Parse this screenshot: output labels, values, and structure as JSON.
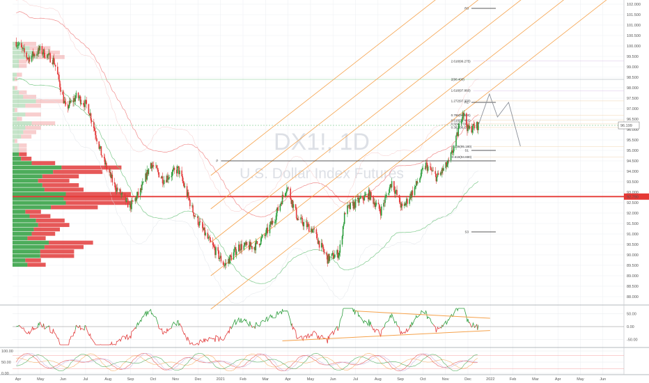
{
  "watermark": {
    "symbol": "DX1!, 1D",
    "name": "U.S. Dollar Index Futures"
  },
  "price_axis": {
    "ticks": [
      "102.000",
      "101.500",
      "101.000",
      "100.500",
      "100.000",
      "99.500",
      "99.000",
      "98.500",
      "98.000",
      "97.500",
      "97.000",
      "96.500",
      "96.000",
      "95.500",
      "95.000",
      "94.500",
      "94.000",
      "93.500",
      "93.000",
      "92.500",
      "92.000",
      "91.500",
      "91.000",
      "90.500",
      "90.000",
      "89.500",
      "89.000",
      "88.500",
      "88.000"
    ],
    "last_price_label": "96.199",
    "ref_price_label": "92.790"
  },
  "time_axis": {
    "labels": [
      "Apr",
      "May",
      "Jun",
      "Jul",
      "Aug",
      "Sep",
      "Oct",
      "Nov",
      "Dec",
      "2021",
      "Feb",
      "Mar",
      "Apr",
      "May",
      "Jun",
      "Jul",
      "Aug",
      "Sep",
      "Oct",
      "Nov",
      "Dec",
      "2022",
      "Feb",
      "Mar",
      "Apr",
      "May",
      "Jun"
    ]
  },
  "pivot_labels": {
    "R3": "R3",
    "R1": "R1",
    "P": "P",
    "S1": "S1",
    "S3": "S3"
  },
  "fib_levels": [
    "3.618(102.500)",
    "2.618(99.275)",
    "2(98.400)",
    "1.618(97.860)",
    "1.272(97.370)",
    "0.786(96.680)",
    "0.618(96.440)",
    "0.5(96.270)",
    "0.382(96.100)",
    "-0.236(95.180)",
    "-0.618(94.690)"
  ],
  "osc1_axis": [
    "50.00",
    "0.00",
    "-50.00"
  ],
  "osc2_axis": [
    "100.00",
    "50.00",
    "0.00"
  ],
  "colors": {
    "up": "#2e9e3e",
    "down": "#e23b3b",
    "fork": "#f5a14a",
    "pivot": "#222222",
    "grid": "#eef0f3",
    "ref": "#e53935",
    "last": "#8fd19e"
  },
  "chart_data": {
    "type": "candlestick",
    "title": "DX1!, 1D",
    "subtitle": "U.S. Dollar Index Futures",
    "x_range": [
      "2020-03-25",
      "2022-06-30"
    ],
    "ylim": [
      87.6,
      102.2
    ],
    "last_price": 96.199,
    "reference_level": 92.79,
    "pivots": {
      "R3": 101.8,
      "R1": 97.3,
      "P": 94.5,
      "S1": 95.0,
      "S3": 91.1
    },
    "close_path": [
      {
        "date": "2020-03-30",
        "close": 100.2
      },
      {
        "date": "2020-04-15",
        "close": 99.4
      },
      {
        "date": "2020-05-01",
        "close": 99.8
      },
      {
        "date": "2020-05-20",
        "close": 99.3
      },
      {
        "date": "2020-06-05",
        "close": 97.0
      },
      {
        "date": "2020-06-20",
        "close": 97.6
      },
      {
        "date": "2020-07-05",
        "close": 97.1
      },
      {
        "date": "2020-07-25",
        "close": 94.6
      },
      {
        "date": "2020-08-10",
        "close": 93.3
      },
      {
        "date": "2020-08-31",
        "close": 92.3
      },
      {
        "date": "2020-09-15",
        "close": 93.1
      },
      {
        "date": "2020-09-28",
        "close": 94.4
      },
      {
        "date": "2020-10-15",
        "close": 93.6
      },
      {
        "date": "2020-11-04",
        "close": 94.1
      },
      {
        "date": "2020-11-25",
        "close": 92.0
      },
      {
        "date": "2020-12-15",
        "close": 90.7
      },
      {
        "date": "2021-01-06",
        "close": 89.5
      },
      {
        "date": "2021-01-25",
        "close": 90.4
      },
      {
        "date": "2021-02-15",
        "close": 90.4
      },
      {
        "date": "2021-03-01",
        "close": 90.9
      },
      {
        "date": "2021-03-15",
        "close": 91.8
      },
      {
        "date": "2021-03-31",
        "close": 93.3
      },
      {
        "date": "2021-04-15",
        "close": 91.7
      },
      {
        "date": "2021-05-05",
        "close": 91.2
      },
      {
        "date": "2021-05-25",
        "close": 89.8
      },
      {
        "date": "2021-06-10",
        "close": 90.1
      },
      {
        "date": "2021-06-18",
        "close": 92.1
      },
      {
        "date": "2021-07-07",
        "close": 92.6
      },
      {
        "date": "2021-07-20",
        "close": 92.9
      },
      {
        "date": "2021-08-05",
        "close": 92.1
      },
      {
        "date": "2021-08-20",
        "close": 93.5
      },
      {
        "date": "2021-09-03",
        "close": 92.2
      },
      {
        "date": "2021-09-20",
        "close": 93.2
      },
      {
        "date": "2021-10-05",
        "close": 94.3
      },
      {
        "date": "2021-10-20",
        "close": 93.7
      },
      {
        "date": "2021-11-05",
        "close": 94.4
      },
      {
        "date": "2021-11-15",
        "close": 95.5
      },
      {
        "date": "2021-11-24",
        "close": 96.9
      },
      {
        "date": "2021-12-01",
        "close": 96.0
      },
      {
        "date": "2021-12-15",
        "close": 96.2
      }
    ],
    "projection": [
      {
        "date": "2021-12-15",
        "close": 96.2
      },
      {
        "date": "2021-12-30",
        "close": 97.7
      },
      {
        "date": "2022-01-10",
        "close": 96.6
      },
      {
        "date": "2022-01-25",
        "close": 97.3
      },
      {
        "date": "2022-02-10",
        "close": 95.2
      }
    ],
    "pitchfork": {
      "anchor_date": "2021-01-06",
      "anchor_price": 89.5,
      "slope_per_day": 0.0277,
      "offsets": [
        -1.6,
        0,
        1.6,
        3.2,
        4.8
      ]
    },
    "oscillator_1": {
      "ylim": [
        -75,
        75
      ],
      "ticks": [
        50,
        0,
        -50
      ]
    },
    "oscillator_2": {
      "ylim": [
        0,
        100
      ],
      "ticks": [
        100,
        50,
        0
      ]
    }
  }
}
